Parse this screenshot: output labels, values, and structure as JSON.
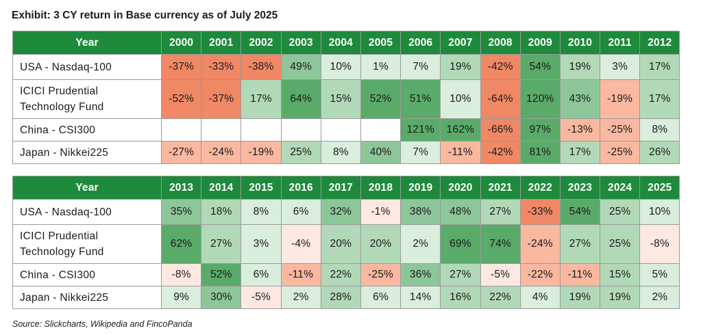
{
  "title": "Exhibit: 3 CY return in Base currency as of July 2025",
  "source": "Source: Slickcharts, Wikipedia and FincoPanda",
  "colors": {
    "header_bg": "#1e8a3c",
    "neg_scale": [
      "#fde8e2",
      "#f9b89f",
      "#f08866"
    ],
    "pos_scale": [
      "#d9eedd",
      "#b2d9b7",
      "#8dc699",
      "#5aab6a"
    ]
  },
  "tables": [
    {
      "header_label": "Year",
      "years": [
        "2000",
        "2001",
        "2002",
        "2003",
        "2004",
        "2005",
        "2006",
        "2007",
        "2008",
        "2009",
        "2010",
        "2011",
        "2012"
      ],
      "rows": [
        {
          "name": "USA - Nasdaq-100",
          "values": [
            "-37%",
            "-33%",
            "-38%",
            "49%",
            "10%",
            "1%",
            "7%",
            "19%",
            "-42%",
            "54%",
            "19%",
            "3%",
            "17%"
          ]
        },
        {
          "name": "ICICI Prudential Technology Fund",
          "values": [
            "-52%",
            "-37%",
            "17%",
            "64%",
            "15%",
            "52%",
            "51%",
            "10%",
            "-64%",
            "120%",
            "43%",
            "-19%",
            "17%"
          ]
        },
        {
          "name": "China - CSI300",
          "values": [
            "",
            "",
            "",
            "",
            "",
            "",
            "121%",
            "162%",
            "-66%",
            "97%",
            "-13%",
            "-25%",
            "8%"
          ]
        },
        {
          "name": "Japan - Nikkei225",
          "values": [
            "-27%",
            "-24%",
            "-19%",
            "25%",
            "8%",
            "40%",
            "7%",
            "-11%",
            "-42%",
            "81%",
            "17%",
            "-25%",
            "26%"
          ]
        }
      ]
    },
    {
      "header_label": "Year",
      "years": [
        "2013",
        "2014",
        "2015",
        "2016",
        "2017",
        "2018",
        "2019",
        "2020",
        "2021",
        "2022",
        "2023",
        "2024",
        "2025"
      ],
      "rows": [
        {
          "name": "USA - Nasdaq-100",
          "values": [
            "35%",
            "18%",
            "8%",
            "6%",
            "32%",
            "-1%",
            "38%",
            "48%",
            "27%",
            "-33%",
            "54%",
            "25%",
            "10%"
          ]
        },
        {
          "name": "ICICI Prudential Technology Fund",
          "values": [
            "62%",
            "27%",
            "3%",
            "-4%",
            "20%",
            "20%",
            "2%",
            "69%",
            "74%",
            "-24%",
            "27%",
            "25%",
            "-8%"
          ]
        },
        {
          "name": "China - CSI300",
          "values": [
            "-8%",
            "52%",
            "6%",
            "-11%",
            "22%",
            "-25%",
            "36%",
            "27%",
            "-5%",
            "-22%",
            "-11%",
            "15%",
            "5%"
          ]
        },
        {
          "name": "Japan - Nikkei225",
          "values": [
            "9%",
            "30%",
            "-5%",
            "2%",
            "28%",
            "6%",
            "14%",
            "16%",
            "22%",
            "4%",
            "19%",
            "19%",
            "2%"
          ]
        }
      ]
    }
  ]
}
